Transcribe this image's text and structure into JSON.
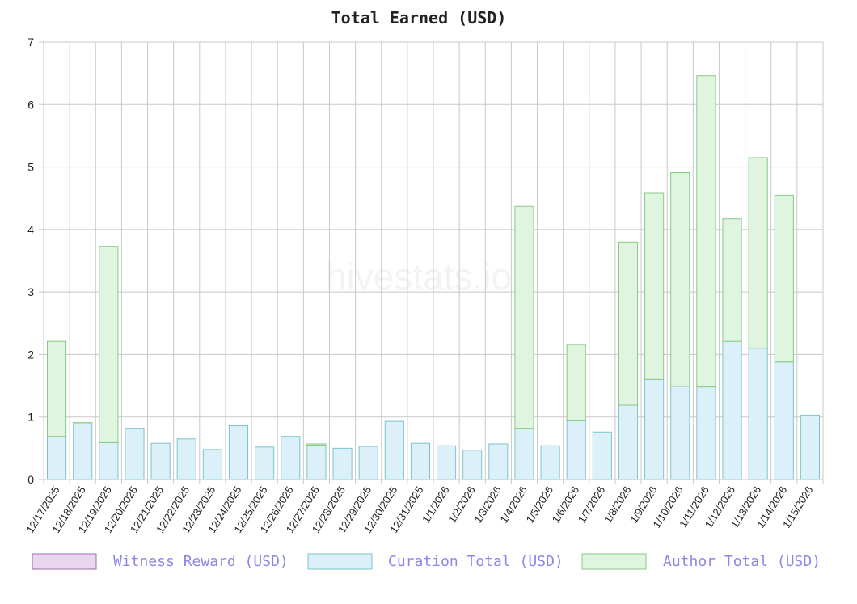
{
  "watermark": "hivestats.io",
  "chart_data": {
    "type": "bar",
    "stacked": true,
    "title": "Total Earned (USD)",
    "xlabel": "",
    "ylabel": "",
    "ylim": [
      0,
      7
    ],
    "yticks": [
      0,
      1,
      2,
      3,
      4,
      5,
      6,
      7
    ],
    "grid": true,
    "legend_position": "bottom",
    "categories": [
      "12/17/2025",
      "12/18/2025",
      "12/19/2025",
      "12/20/2025",
      "12/21/2025",
      "12/22/2025",
      "12/23/2025",
      "12/24/2025",
      "12/25/2025",
      "12/26/2025",
      "12/27/2025",
      "12/28/2025",
      "12/29/2025",
      "12/30/2025",
      "12/31/2025",
      "1/1/2026",
      "1/2/2026",
      "1/3/2026",
      "1/4/2026",
      "1/5/2026",
      "1/6/2026",
      "1/7/2026",
      "1/8/2026",
      "1/9/2026",
      "1/10/2026",
      "1/11/2026",
      "1/12/2026",
      "1/13/2026",
      "1/14/2026",
      "1/15/2026"
    ],
    "series": [
      {
        "name": "Witness Reward (USD)",
        "fill": "#e8d6ec",
        "stroke": "#a66ab0",
        "values": [
          0,
          0,
          0,
          0,
          0,
          0,
          0,
          0,
          0,
          0,
          0,
          0,
          0,
          0,
          0,
          0,
          0,
          0,
          0,
          0,
          0,
          0,
          0,
          0,
          0,
          0,
          0,
          0,
          0,
          0
        ]
      },
      {
        "name": "Curation Total (USD)",
        "fill": "#dbf0f9",
        "stroke": "#7cc4cc",
        "values": [
          0.69,
          0.89,
          0.59,
          0.82,
          0.58,
          0.65,
          0.48,
          0.86,
          0.52,
          0.69,
          0.55,
          0.5,
          0.53,
          0.93,
          0.58,
          0.54,
          0.47,
          0.57,
          0.82,
          0.54,
          0.94,
          0.76,
          1.19,
          1.6,
          1.49,
          1.48,
          2.21,
          2.1,
          1.88,
          1.03
        ]
      },
      {
        "name": "Author Total (USD)",
        "fill": "#e0f5e0",
        "stroke": "#86c986",
        "values": [
          1.52,
          0.02,
          3.14,
          0,
          0,
          0,
          0,
          0,
          0,
          0,
          0.02,
          0,
          0,
          0,
          0,
          0,
          0,
          0,
          3.55,
          0,
          1.22,
          0,
          2.61,
          2.98,
          3.42,
          4.98,
          1.96,
          3.05,
          2.67,
          0
        ]
      }
    ]
  },
  "legend": {
    "label_color": "#8c87e6"
  }
}
